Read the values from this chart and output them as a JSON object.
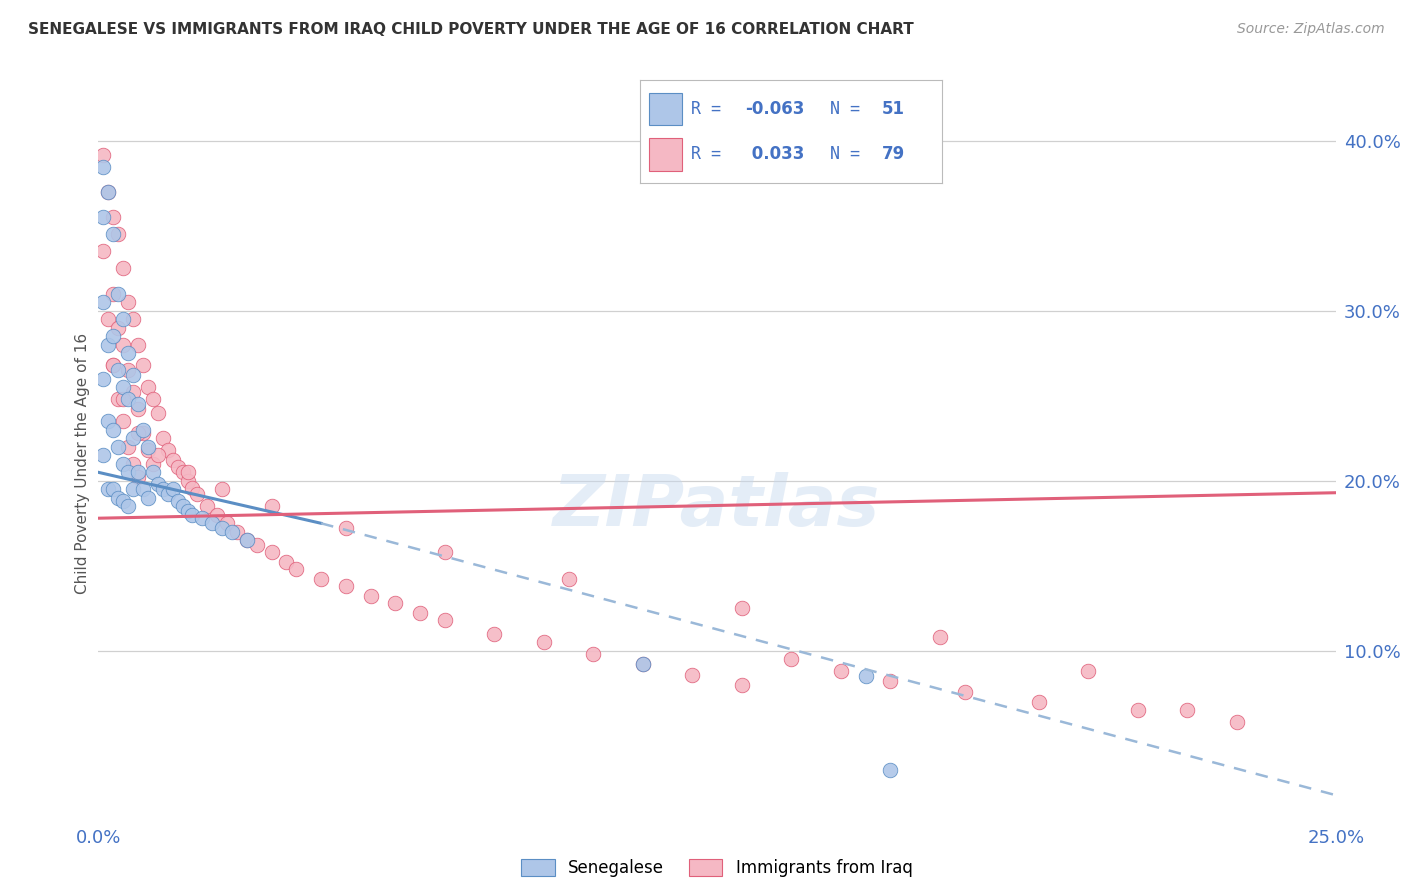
{
  "title": "SENEGALESE VS IMMIGRANTS FROM IRAQ CHILD POVERTY UNDER THE AGE OF 16 CORRELATION CHART",
  "source": "Source: ZipAtlas.com",
  "ylabel": "Child Poverty Under the Age of 16",
  "xlim": [
    0.0,
    0.25
  ],
  "ylim": [
    0.0,
    0.42
  ],
  "color_blue": "#aec6e8",
  "color_pink": "#f5b8c4",
  "color_blue_line": "#5b8ec4",
  "color_pink_line": "#e0607a",
  "color_blue_dashed": "#9ab8d8",
  "axis_color": "#4472c4",
  "blue_line_x": [
    0.0,
    0.045
  ],
  "blue_line_y": [
    0.205,
    0.175
  ],
  "dash_line_x": [
    0.045,
    0.25
  ],
  "dash_line_y": [
    0.175,
    0.015
  ],
  "pink_line_x": [
    0.0,
    0.25
  ],
  "pink_line_y": [
    0.178,
    0.193
  ],
  "sen_x": [
    0.001,
    0.001,
    0.001,
    0.001,
    0.001,
    0.002,
    0.002,
    0.002,
    0.002,
    0.003,
    0.003,
    0.003,
    0.003,
    0.004,
    0.004,
    0.004,
    0.004,
    0.005,
    0.005,
    0.005,
    0.005,
    0.006,
    0.006,
    0.006,
    0.006,
    0.007,
    0.007,
    0.007,
    0.008,
    0.008,
    0.009,
    0.009,
    0.01,
    0.01,
    0.011,
    0.012,
    0.013,
    0.014,
    0.015,
    0.016,
    0.017,
    0.018,
    0.019,
    0.021,
    0.023,
    0.025,
    0.027,
    0.03,
    0.11,
    0.155,
    0.16
  ],
  "sen_y": [
    0.385,
    0.355,
    0.305,
    0.26,
    0.215,
    0.37,
    0.28,
    0.235,
    0.195,
    0.345,
    0.285,
    0.23,
    0.195,
    0.31,
    0.265,
    0.22,
    0.19,
    0.295,
    0.255,
    0.21,
    0.188,
    0.275,
    0.248,
    0.205,
    0.185,
    0.262,
    0.225,
    0.195,
    0.245,
    0.205,
    0.23,
    0.195,
    0.22,
    0.19,
    0.205,
    0.198,
    0.195,
    0.192,
    0.195,
    0.188,
    0.185,
    0.182,
    0.18,
    0.178,
    0.175,
    0.172,
    0.17,
    0.165,
    0.092,
    0.085,
    0.03
  ],
  "iraq_x": [
    0.001,
    0.001,
    0.002,
    0.002,
    0.003,
    0.003,
    0.003,
    0.004,
    0.004,
    0.004,
    0.005,
    0.005,
    0.005,
    0.006,
    0.006,
    0.006,
    0.007,
    0.007,
    0.007,
    0.008,
    0.008,
    0.008,
    0.009,
    0.009,
    0.01,
    0.01,
    0.011,
    0.011,
    0.012,
    0.013,
    0.014,
    0.015,
    0.016,
    0.017,
    0.018,
    0.019,
    0.02,
    0.022,
    0.024,
    0.026,
    0.028,
    0.03,
    0.032,
    0.035,
    0.038,
    0.04,
    0.045,
    0.05,
    0.055,
    0.06,
    0.065,
    0.07,
    0.08,
    0.09,
    0.1,
    0.11,
    0.12,
    0.13,
    0.14,
    0.15,
    0.16,
    0.175,
    0.19,
    0.21,
    0.23,
    0.003,
    0.005,
    0.008,
    0.012,
    0.018,
    0.025,
    0.035,
    0.05,
    0.07,
    0.095,
    0.13,
    0.17,
    0.2,
    0.22
  ],
  "iraq_y": [
    0.392,
    0.335,
    0.37,
    0.295,
    0.355,
    0.31,
    0.268,
    0.345,
    0.29,
    0.248,
    0.325,
    0.28,
    0.235,
    0.305,
    0.265,
    0.22,
    0.295,
    0.252,
    0.21,
    0.28,
    0.242,
    0.202,
    0.268,
    0.228,
    0.255,
    0.218,
    0.248,
    0.21,
    0.24,
    0.225,
    0.218,
    0.212,
    0.208,
    0.205,
    0.2,
    0.196,
    0.192,
    0.185,
    0.18,
    0.175,
    0.17,
    0.165,
    0.162,
    0.158,
    0.152,
    0.148,
    0.142,
    0.138,
    0.132,
    0.128,
    0.122,
    0.118,
    0.11,
    0.105,
    0.098,
    0.092,
    0.086,
    0.08,
    0.095,
    0.088,
    0.082,
    0.076,
    0.07,
    0.065,
    0.058,
    0.268,
    0.248,
    0.228,
    0.215,
    0.205,
    0.195,
    0.185,
    0.172,
    0.158,
    0.142,
    0.125,
    0.108,
    0.088,
    0.065
  ]
}
